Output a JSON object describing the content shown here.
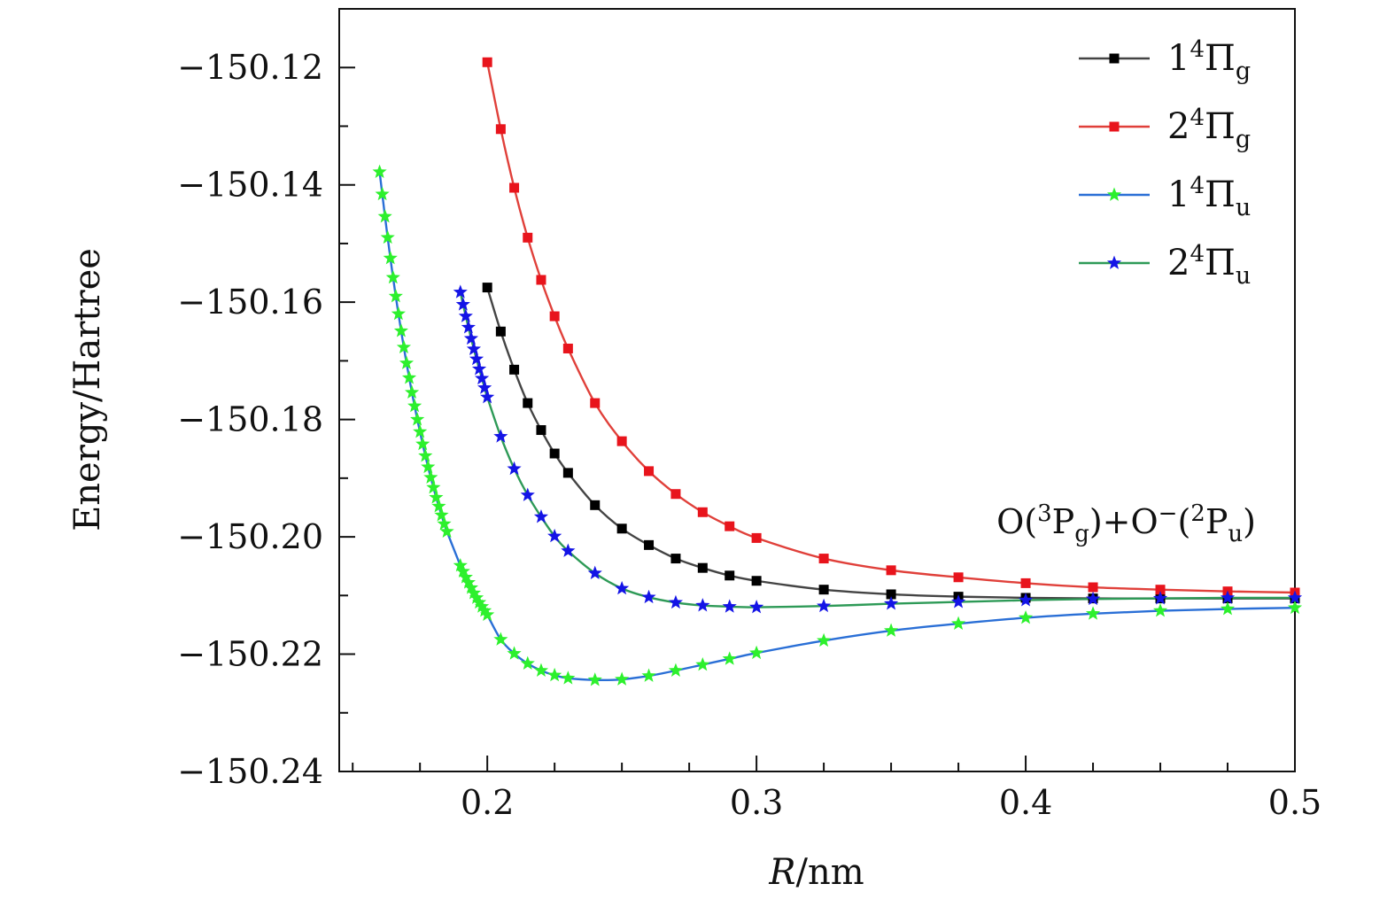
{
  "chart_data": {
    "type": "line",
    "title": "",
    "xlabel_italic": "R",
    "xlabel_rest": "/nm",
    "ylabel": "Energy/Hartree",
    "xlim": [
      0.145,
      0.5
    ],
    "ylim": [
      -150.24,
      -150.11
    ],
    "xticks": [
      0.2,
      0.3,
      0.4,
      0.5
    ],
    "xtick_labels": [
      "0.2",
      "0.3",
      "0.4",
      "0.5"
    ],
    "yticks": [
      -150.12,
      -150.14,
      -150.16,
      -150.18,
      -150.2,
      -150.22,
      -150.24
    ],
    "ytick_labels": [
      "−150.12",
      "−150.14",
      "−150.16",
      "−150.18",
      "−150.20",
      "−150.22",
      "−150.24"
    ],
    "legend_position": "top-right",
    "annotation": {
      "prefix": "O(",
      "sup1": "3",
      "p1": "P",
      "sub1": "g",
      "mid": ")+O",
      "sup2": "−",
      "mid2": "(",
      "sup3": "2",
      "p2": "P",
      "sub2": "u",
      "suffix": ")"
    },
    "series": [
      {
        "name": "1⁴Πg",
        "num": "1",
        "sup": "4",
        "sym": "Π",
        "sub": "g",
        "line_color": "#444444",
        "marker_color": "#000000",
        "marker": "square",
        "x": [
          0.2,
          0.205,
          0.21,
          0.215,
          0.22,
          0.225,
          0.23,
          0.24,
          0.25,
          0.26,
          0.27,
          0.28,
          0.29,
          0.3,
          0.325,
          0.35,
          0.375,
          0.4,
          0.425,
          0.45,
          0.475,
          0.5
        ],
        "y": [
          -150.1575,
          -150.165,
          -150.1715,
          -150.1772,
          -150.1818,
          -150.1858,
          -150.1891,
          -150.1946,
          -150.1986,
          -150.2014,
          -150.2037,
          -150.2053,
          -150.2066,
          -150.2075,
          -150.209,
          -150.2098,
          -150.2102,
          -150.2104,
          -150.2105,
          -150.2105,
          -150.2105,
          -150.2105
        ]
      },
      {
        "name": "2⁴Πg",
        "num": "2",
        "sup": "4",
        "sym": "Π",
        "sub": "g",
        "line_color": "#e0403a",
        "marker_color": "#e8141c",
        "marker": "square",
        "x": [
          0.2,
          0.205,
          0.21,
          0.215,
          0.22,
          0.225,
          0.23,
          0.24,
          0.25,
          0.26,
          0.27,
          0.28,
          0.29,
          0.3,
          0.325,
          0.35,
          0.375,
          0.4,
          0.425,
          0.45,
          0.475,
          0.5
        ],
        "y": [
          -150.1191,
          -150.1305,
          -150.1405,
          -150.149,
          -150.1562,
          -150.1624,
          -150.1679,
          -150.1772,
          -150.1837,
          -150.1888,
          -150.1927,
          -150.1958,
          -150.1982,
          -150.2002,
          -150.2037,
          -150.2057,
          -150.2069,
          -150.2079,
          -150.2086,
          -150.209,
          -150.2093,
          -150.2095
        ]
      },
      {
        "name": "1⁴Πu",
        "num": "1",
        "sup": "4",
        "sym": "Π",
        "sub": "u",
        "line_color": "#2a6fd6",
        "marker_color": "#2df02d",
        "marker": "star",
        "x": [
          0.16,
          0.161,
          0.162,
          0.163,
          0.164,
          0.165,
          0.166,
          0.167,
          0.168,
          0.169,
          0.17,
          0.171,
          0.172,
          0.173,
          0.174,
          0.175,
          0.176,
          0.177,
          0.178,
          0.179,
          0.18,
          0.181,
          0.182,
          0.183,
          0.184,
          0.185,
          0.19,
          0.191,
          0.192,
          0.193,
          0.194,
          0.195,
          0.196,
          0.197,
          0.198,
          0.199,
          0.2,
          0.205,
          0.21,
          0.215,
          0.22,
          0.225,
          0.23,
          0.24,
          0.25,
          0.26,
          0.27,
          0.28,
          0.29,
          0.3,
          0.325,
          0.35,
          0.375,
          0.4,
          0.425,
          0.45,
          0.475,
          0.5
        ],
        "y": [
          -150.1378,
          -150.1416,
          -150.1454,
          -150.149,
          -150.1525,
          -150.1558,
          -150.159,
          -150.162,
          -150.1649,
          -150.1677,
          -150.1704,
          -150.1729,
          -150.1754,
          -150.1777,
          -150.18,
          -150.1821,
          -150.1842,
          -150.1862,
          -150.1881,
          -150.1899,
          -150.1916,
          -150.1933,
          -150.1948,
          -150.1963,
          -150.1978,
          -150.1991,
          -150.2049,
          -150.2059,
          -150.2069,
          -150.2078,
          -150.2087,
          -150.2096,
          -150.2104,
          -150.2112,
          -150.2119,
          -150.2126,
          -150.2133,
          -150.2175,
          -150.2199,
          -150.2216,
          -150.2228,
          -150.2236,
          -150.2241,
          -150.2244,
          -150.2243,
          -150.2237,
          -150.2228,
          -150.2218,
          -150.2208,
          -150.2198,
          -150.2177,
          -150.216,
          -150.2148,
          -150.2138,
          -150.2131,
          -150.2126,
          -150.2123,
          -150.2121
        ]
      },
      {
        "name": "2⁴Πu",
        "num": "2",
        "sup": "4",
        "sym": "Π",
        "sub": "u",
        "line_color": "#2e9a57",
        "marker_color": "#1414e6",
        "marker": "star",
        "x": [
          0.19,
          0.191,
          0.192,
          0.193,
          0.194,
          0.195,
          0.196,
          0.197,
          0.198,
          0.199,
          0.2,
          0.205,
          0.21,
          0.215,
          0.22,
          0.225,
          0.23,
          0.24,
          0.25,
          0.26,
          0.27,
          0.28,
          0.29,
          0.3,
          0.325,
          0.35,
          0.375,
          0.4,
          0.425,
          0.45,
          0.475,
          0.5
        ],
        "y": [
          -150.1583,
          -150.1604,
          -150.1624,
          -150.1643,
          -150.1662,
          -150.168,
          -150.1697,
          -150.1714,
          -150.173,
          -150.1746,
          -150.1762,
          -150.1829,
          -150.1884,
          -150.1929,
          -150.1966,
          -150.1999,
          -150.2024,
          -150.2062,
          -150.2088,
          -150.2103,
          -150.2112,
          -150.2117,
          -150.2119,
          -150.212,
          -150.2118,
          -150.2114,
          -150.2111,
          -150.2108,
          -150.2106,
          -150.2105,
          -150.2104,
          -150.2104
        ]
      }
    ]
  }
}
